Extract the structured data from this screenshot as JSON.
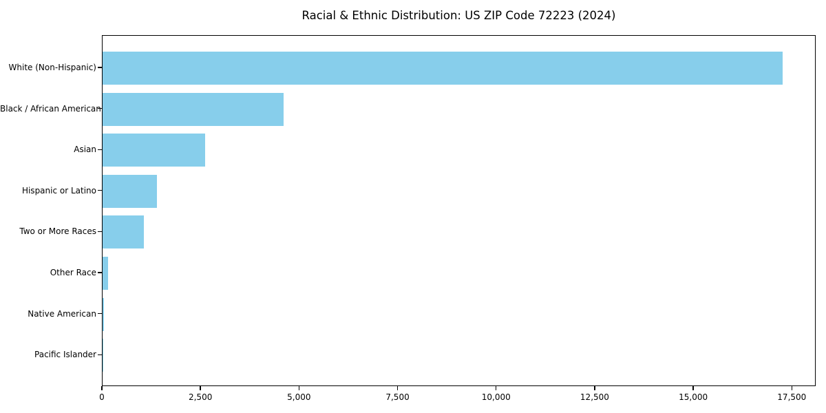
{
  "chart_data": {
    "type": "bar",
    "orientation": "horizontal",
    "title": "Racial & Ethnic Distribution: US ZIP Code 72223 (2024)",
    "categories": [
      "White (Non-Hispanic)",
      "Black / African American",
      "Asian",
      "Hispanic or Latino",
      "Two or More Races",
      "Other Race",
      "Native American",
      "Pacific Islander"
    ],
    "values": [
      17250,
      4600,
      2600,
      1380,
      1050,
      140,
      30,
      10
    ],
    "xlabel": "",
    "ylabel": "",
    "xlim": [
      0,
      18100
    ],
    "x_ticks": [
      0,
      2500,
      5000,
      7500,
      10000,
      12500,
      15000,
      17500
    ],
    "x_tick_labels": [
      "0",
      "2,500",
      "5,000",
      "7,500",
      "10,000",
      "12,500",
      "15,000",
      "17,500"
    ],
    "bar_color": "#87ceeb",
    "frame_color": "#000000",
    "background_color": "#ffffff",
    "grid": false,
    "legend": null,
    "value_labels_shown": false
  }
}
